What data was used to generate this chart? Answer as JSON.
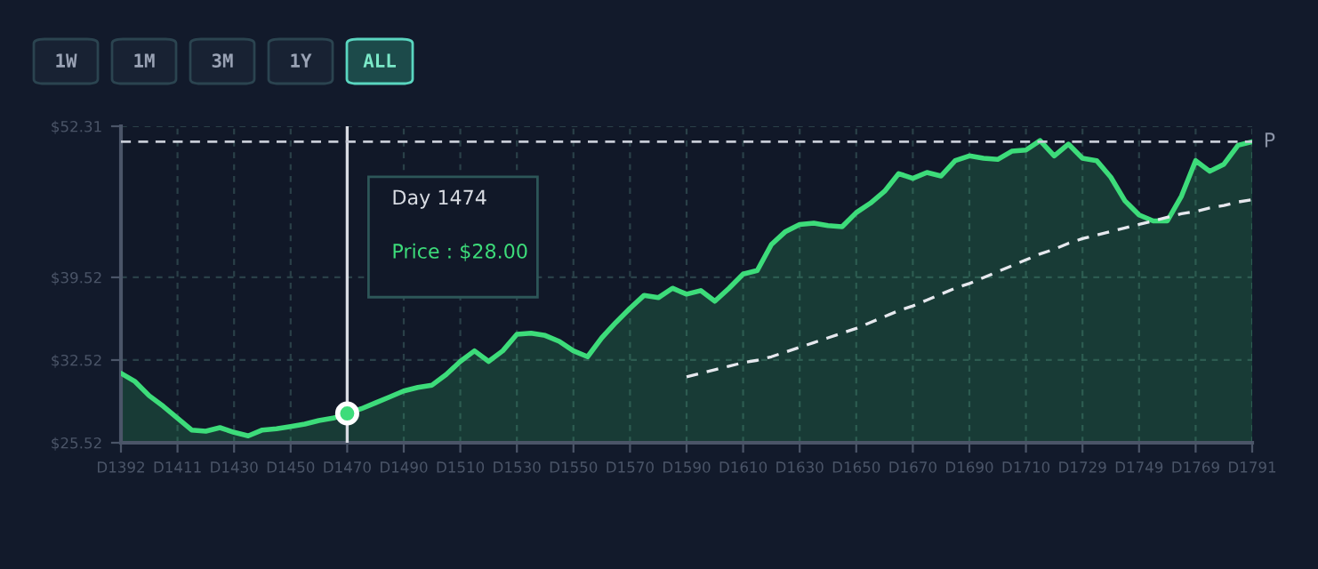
{
  "chart_data": {
    "type": "area",
    "annotations": [
      "Day 1474",
      "Price : $28.00",
      "1W",
      "1M",
      "3M",
      "1Y",
      "ALL"
    ],
    "categories": [
      "D1392",
      null,
      null,
      null,
      "D1411",
      null,
      null,
      null,
      "D1430",
      null,
      null,
      null,
      "D1450",
      null,
      null,
      null,
      "D1470",
      null,
      null,
      null,
      "D1490",
      null,
      null,
      null,
      "D1510",
      null,
      null,
      null,
      "D1530",
      null,
      null,
      null,
      "D1550",
      null,
      null,
      null,
      "D1570",
      null,
      null,
      null,
      "D1590",
      null,
      null,
      null,
      "D1610",
      null,
      null,
      null,
      "D1630",
      null,
      null,
      null,
      "D1650",
      null,
      null,
      null,
      "D1670",
      null,
      null,
      null,
      "D1690",
      null,
      null,
      null,
      "D1710",
      null,
      null,
      null,
      "D1729",
      null,
      null,
      null,
      "D1749",
      null,
      null,
      null,
      "D1769",
      null,
      null,
      null,
      "D1791"
    ],
    "series": [
      {
        "color": "#3ddc7a",
        "values": [
          31.4,
          30.7,
          29.5,
          28.6,
          27.6,
          26.6,
          26.5,
          26.8,
          26.4,
          26.1,
          26.6,
          26.7,
          26.9,
          27.1,
          27.4,
          27.6,
          28.0,
          28.4,
          28.9,
          29.4,
          29.9,
          30.2,
          30.4,
          31.3,
          32.4,
          33.3,
          32.4,
          33.3,
          34.7,
          34.8,
          34.6,
          34.1,
          33.3,
          32.8,
          34.4,
          35.7,
          36.9,
          38.0,
          37.8,
          38.6,
          38.1,
          38.4,
          37.5,
          38.6,
          39.8,
          40.1,
          42.3,
          43.4,
          44.0,
          44.1,
          43.9,
          43.8,
          45.0,
          45.8,
          46.8,
          48.3,
          47.9,
          48.4,
          48.1,
          49.4,
          49.8,
          49.6,
          49.5,
          50.2,
          50.3,
          51.1,
          49.8,
          50.8,
          49.6,
          49.4,
          48.0,
          46.0,
          44.8,
          44.3,
          44.3,
          46.4,
          49.4,
          48.5,
          49.1,
          50.7,
          51.0
        ]
      },
      {
        "type": "line",
        "color": "#e6e8ee",
        "line_style": "dashed",
        "values": [
          null,
          null,
          null,
          null,
          null,
          null,
          null,
          null,
          null,
          null,
          null,
          null,
          null,
          null,
          null,
          null,
          null,
          null,
          null,
          null,
          null,
          null,
          null,
          null,
          null,
          null,
          null,
          null,
          null,
          null,
          null,
          null,
          null,
          null,
          null,
          null,
          null,
          null,
          null,
          null,
          31.1,
          31.4,
          31.7,
          32.0,
          32.3,
          32.5,
          32.8,
          33.2,
          33.6,
          34.0,
          34.4,
          34.8,
          35.2,
          35.7,
          36.2,
          36.7,
          37.1,
          37.6,
          38.1,
          38.6,
          39.0,
          39.5,
          40.0,
          40.5,
          41.0,
          41.5,
          41.9,
          42.4,
          42.8,
          43.1,
          43.4,
          43.7,
          44.0,
          44.3,
          44.6,
          44.9,
          45.1,
          45.4,
          45.6,
          45.9,
          46.1
        ]
      },
      {
        "type": "scatter",
        "color": "#3ddc7a",
        "marker": "circle",
        "values": [
          null,
          null,
          null,
          null,
          null,
          null,
          null,
          null,
          null,
          null,
          null,
          null,
          null,
          null,
          null,
          null,
          28.0,
          null,
          null,
          null,
          null,
          null,
          null,
          null,
          null,
          null,
          null,
          null,
          null,
          null,
          null,
          null,
          null,
          null,
          null,
          null,
          null,
          null,
          null,
          null,
          null,
          null,
          null,
          null,
          null,
          null,
          null,
          null,
          null,
          null,
          null,
          null,
          null,
          null,
          null,
          null,
          null,
          null,
          null,
          null,
          null,
          null,
          null,
          null,
          null,
          null,
          null,
          null,
          null,
          null,
          null,
          null,
          null,
          null,
          null,
          null,
          null,
          null,
          null,
          null,
          null
        ]
      }
    ],
    "ylim": [
      25.52,
      52.31
    ],
    "yticks": [
      {
        "value": 25.52,
        "label": "$25.52"
      },
      {
        "value": 32.52,
        "label": "$32.52"
      },
      {
        "value": 39.52,
        "label": "$39.52"
      },
      {
        "value": 52.31,
        "label": "$52.31"
      }
    ],
    "ref_lines": [
      {
        "axis": "y",
        "value": 51.0,
        "label": "P",
        "color": "#c8ccd6",
        "line_style": "dashed"
      }
    ],
    "grid": true,
    "legend": false
  }
}
